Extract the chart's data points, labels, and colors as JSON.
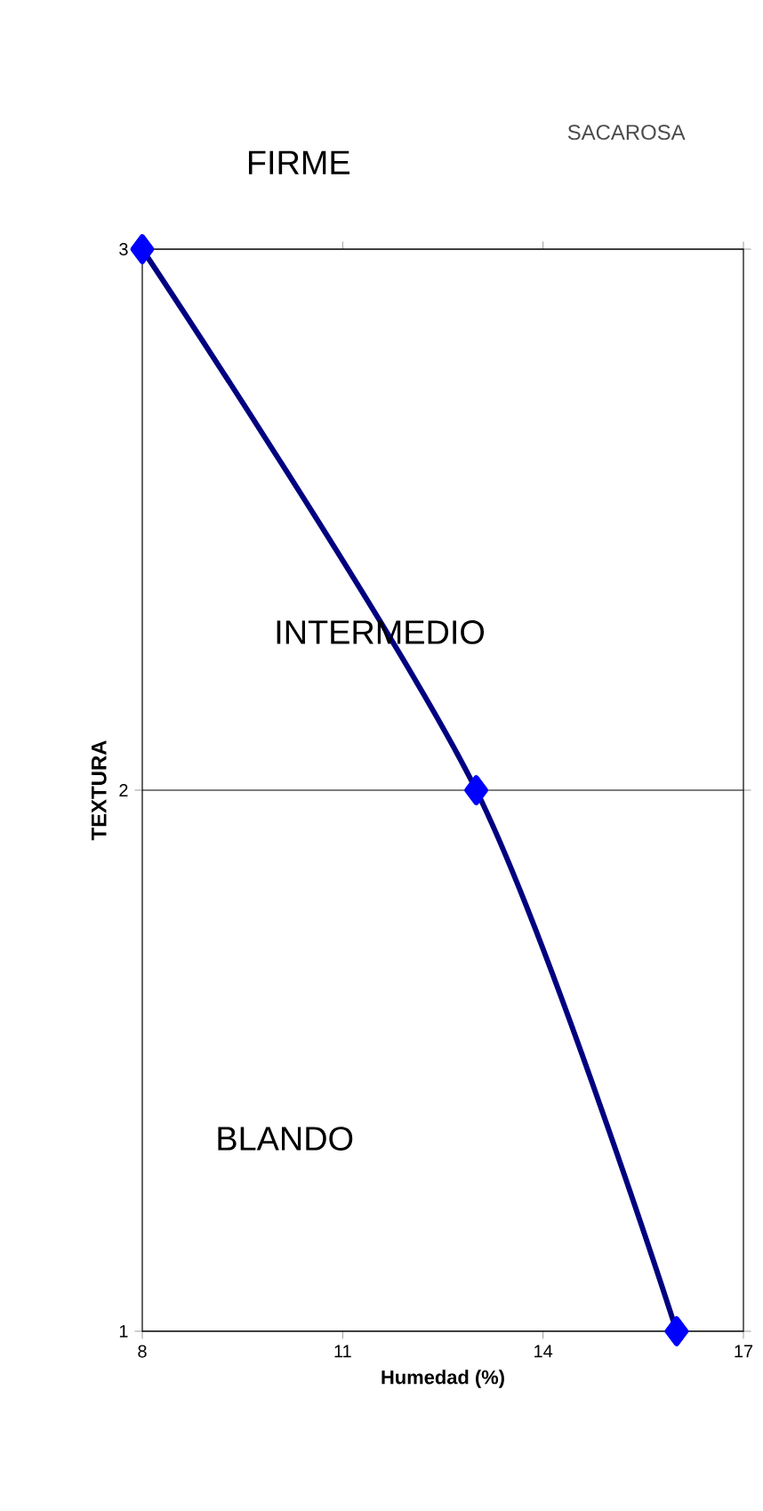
{
  "chart_data": {
    "type": "line",
    "title": "SACAROSA",
    "xlabel": "Humedad (%)",
    "ylabel": "TEXTURA",
    "annotations": [
      "FIRME",
      "INTERMEDIO",
      "BLANDO"
    ],
    "x": [
      8,
      13,
      16
    ],
    "series": [
      {
        "color": "#000080",
        "values": [
          3,
          2,
          1
        ]
      }
    ],
    "xlim": [
      8,
      17
    ],
    "xticks": [
      8,
      11,
      14,
      17
    ],
    "ylim": [
      1,
      3
    ],
    "yticks": [
      1,
      2,
      3
    ],
    "grid": "y",
    "marker": "diamond",
    "line_style": "solid"
  }
}
